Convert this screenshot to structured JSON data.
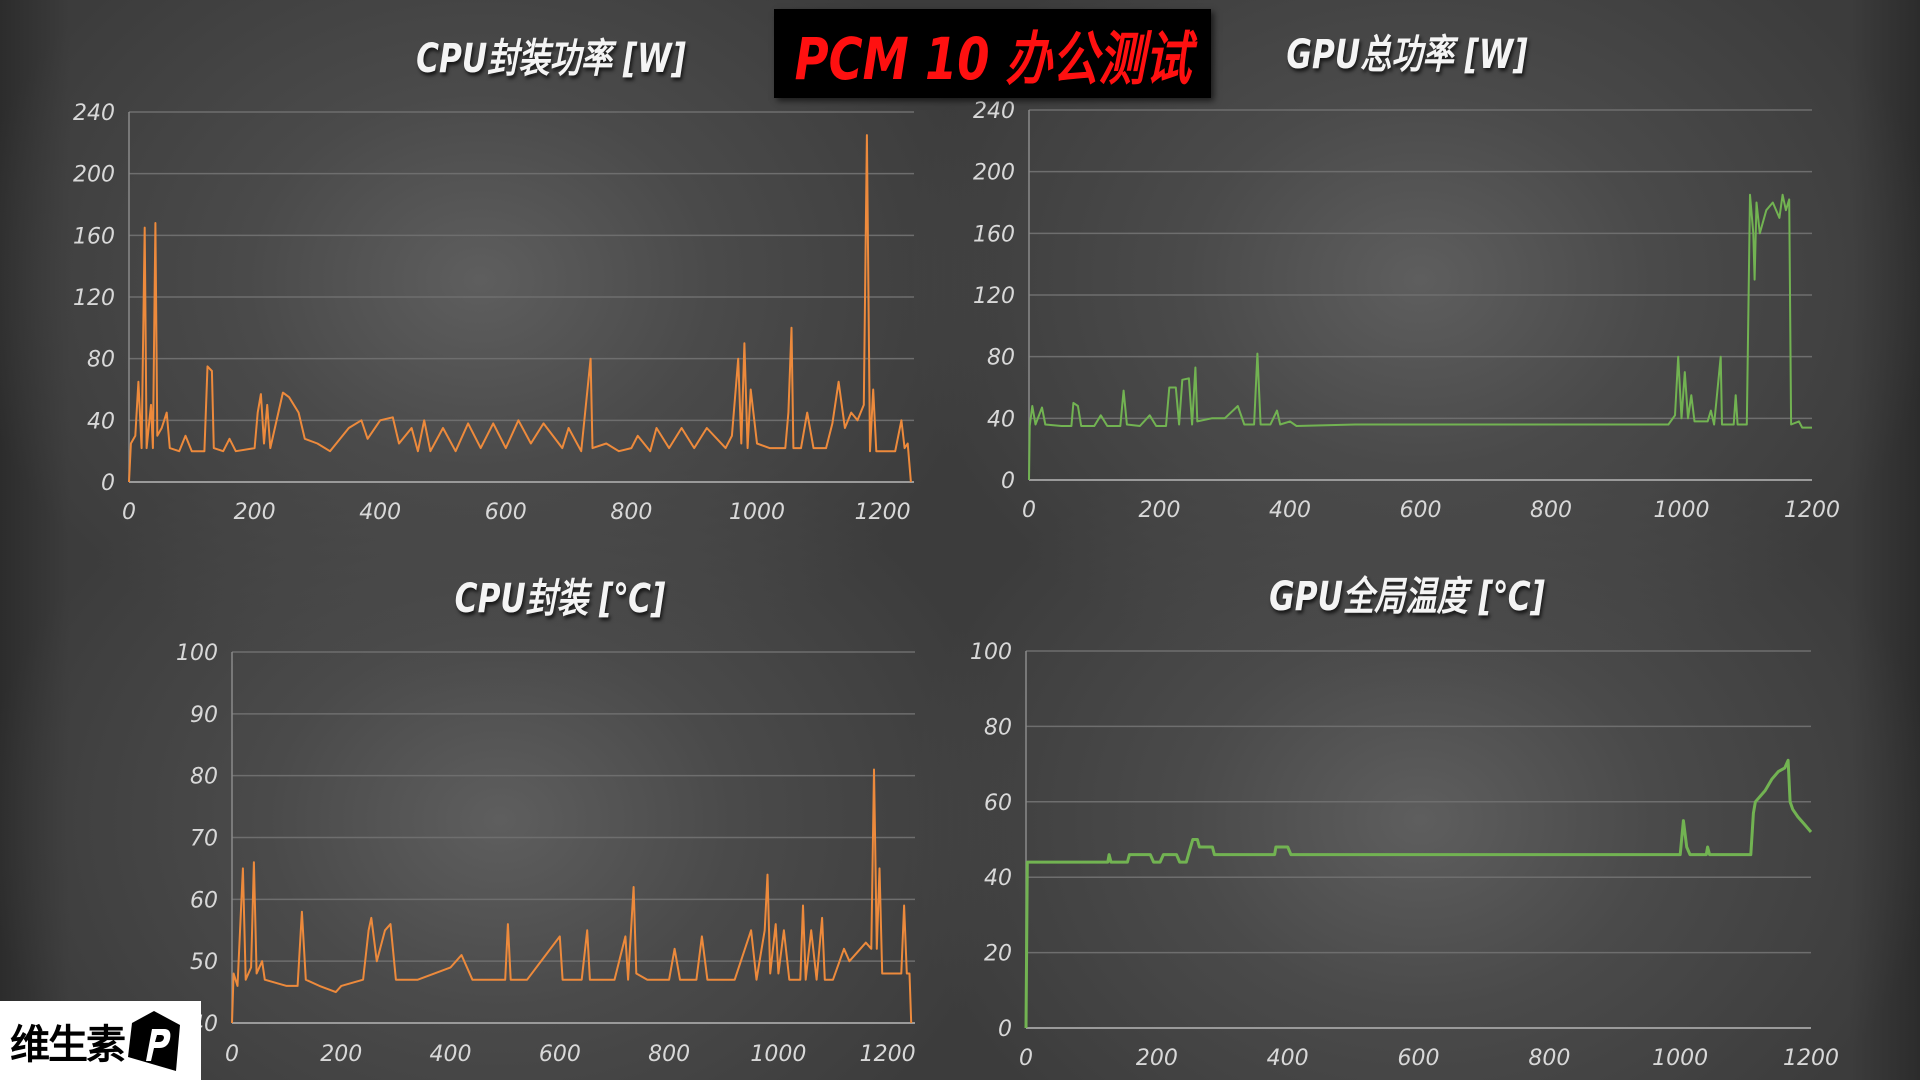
{
  "header": {
    "title": "PCM 10 办公测试",
    "title_color": "#ff1010"
  },
  "logo": {
    "text": "维生素",
    "mark": "P"
  },
  "chart_data": [
    {
      "type": "line",
      "title": "CPU封装功率 [W]",
      "color": "#ed8a3c",
      "xlim": [
        0,
        1250
      ],
      "ylim": [
        0,
        240
      ],
      "xticks": [
        0,
        200,
        400,
        600,
        800,
        1000,
        1200
      ],
      "yticks": [
        0,
        40,
        80,
        120,
        160,
        200,
        240
      ],
      "grid": true,
      "points": [
        [
          0,
          0
        ],
        [
          3,
          25
        ],
        [
          10,
          30
        ],
        [
          15,
          65
        ],
        [
          20,
          22
        ],
        [
          25,
          165
        ],
        [
          28,
          22
        ],
        [
          35,
          50
        ],
        [
          38,
          22
        ],
        [
          42,
          168
        ],
        [
          45,
          30
        ],
        [
          52,
          35
        ],
        [
          60,
          45
        ],
        [
          65,
          22
        ],
        [
          80,
          20
        ],
        [
          90,
          30
        ],
        [
          100,
          20
        ],
        [
          120,
          20
        ],
        [
          125,
          75
        ],
        [
          132,
          72
        ],
        [
          135,
          22
        ],
        [
          150,
          20
        ],
        [
          160,
          28
        ],
        [
          170,
          20
        ],
        [
          200,
          22
        ],
        [
          205,
          45
        ],
        [
          210,
          57
        ],
        [
          215,
          25
        ],
        [
          220,
          50
        ],
        [
          225,
          22
        ],
        [
          245,
          58
        ],
        [
          255,
          55
        ],
        [
          270,
          45
        ],
        [
          280,
          28
        ],
        [
          300,
          25
        ],
        [
          320,
          20
        ],
        [
          350,
          35
        ],
        [
          370,
          40
        ],
        [
          380,
          28
        ],
        [
          400,
          40
        ],
        [
          420,
          42
        ],
        [
          430,
          25
        ],
        [
          450,
          35
        ],
        [
          460,
          20
        ],
        [
          470,
          40
        ],
        [
          480,
          20
        ],
        [
          500,
          35
        ],
        [
          520,
          20
        ],
        [
          540,
          38
        ],
        [
          560,
          22
        ],
        [
          580,
          38
        ],
        [
          600,
          22
        ],
        [
          620,
          40
        ],
        [
          640,
          25
        ],
        [
          660,
          38
        ],
        [
          690,
          22
        ],
        [
          700,
          35
        ],
        [
          720,
          20
        ],
        [
          735,
          80
        ],
        [
          738,
          22
        ],
        [
          760,
          25
        ],
        [
          780,
          20
        ],
        [
          800,
          22
        ],
        [
          810,
          30
        ],
        [
          830,
          20
        ],
        [
          840,
          35
        ],
        [
          860,
          22
        ],
        [
          880,
          35
        ],
        [
          900,
          22
        ],
        [
          920,
          35
        ],
        [
          950,
          22
        ],
        [
          960,
          30
        ],
        [
          970,
          80
        ],
        [
          975,
          25
        ],
        [
          980,
          90
        ],
        [
          985,
          22
        ],
        [
          990,
          60
        ],
        [
          1000,
          25
        ],
        [
          1020,
          22
        ],
        [
          1045,
          22
        ],
        [
          1050,
          45
        ],
        [
          1055,
          100
        ],
        [
          1058,
          22
        ],
        [
          1070,
          22
        ],
        [
          1080,
          45
        ],
        [
          1090,
          22
        ],
        [
          1110,
          22
        ],
        [
          1120,
          38
        ],
        [
          1130,
          65
        ],
        [
          1140,
          35
        ],
        [
          1150,
          45
        ],
        [
          1160,
          40
        ],
        [
          1170,
          50
        ],
        [
          1175,
          225
        ],
        [
          1180,
          20
        ],
        [
          1185,
          60
        ],
        [
          1190,
          20
        ],
        [
          1220,
          20
        ],
        [
          1230,
          40
        ],
        [
          1235,
          22
        ],
        [
          1240,
          25
        ],
        [
          1245,
          0
        ]
      ]
    },
    {
      "type": "line",
      "title": "GPU总功率 [W]",
      "color": "#72b352",
      "xlim": [
        0,
        1200
      ],
      "ylim": [
        0,
        240
      ],
      "xticks": [
        0,
        200,
        400,
        600,
        800,
        1000,
        1200
      ],
      "yticks": [
        0,
        40,
        80,
        120,
        160,
        200,
        240
      ],
      "grid": true,
      "points": [
        [
          0,
          0
        ],
        [
          1,
          35
        ],
        [
          5,
          48
        ],
        [
          10,
          36
        ],
        [
          20,
          47
        ],
        [
          25,
          36
        ],
        [
          50,
          35
        ],
        [
          65,
          35
        ],
        [
          68,
          50
        ],
        [
          75,
          48
        ],
        [
          80,
          35
        ],
        [
          100,
          35
        ],
        [
          110,
          42
        ],
        [
          120,
          35
        ],
        [
          140,
          35
        ],
        [
          145,
          58
        ],
        [
          150,
          36
        ],
        [
          170,
          35
        ],
        [
          185,
          42
        ],
        [
          195,
          35
        ],
        [
          210,
          35
        ],
        [
          215,
          60
        ],
        [
          225,
          60
        ],
        [
          230,
          36
        ],
        [
          235,
          65
        ],
        [
          245,
          66
        ],
        [
          250,
          36
        ],
        [
          255,
          73
        ],
        [
          258,
          38
        ],
        [
          280,
          40
        ],
        [
          300,
          40
        ],
        [
          320,
          48
        ],
        [
          330,
          36
        ],
        [
          345,
          36
        ],
        [
          350,
          82
        ],
        [
          355,
          36
        ],
        [
          370,
          36
        ],
        [
          380,
          45
        ],
        [
          385,
          36
        ],
        [
          400,
          38
        ],
        [
          410,
          35
        ],
        [
          500,
          36
        ],
        [
          600,
          36
        ],
        [
          700,
          36
        ],
        [
          800,
          36
        ],
        [
          950,
          36
        ],
        [
          980,
          36
        ],
        [
          990,
          42
        ],
        [
          995,
          80
        ],
        [
          1000,
          40
        ],
        [
          1005,
          70
        ],
        [
          1010,
          40
        ],
        [
          1015,
          55
        ],
        [
          1020,
          38
        ],
        [
          1040,
          38
        ],
        [
          1045,
          45
        ],
        [
          1050,
          36
        ],
        [
          1060,
          80
        ],
        [
          1062,
          36
        ],
        [
          1080,
          36
        ],
        [
          1083,
          55
        ],
        [
          1086,
          36
        ],
        [
          1100,
          36
        ],
        [
          1105,
          185
        ],
        [
          1110,
          160
        ],
        [
          1112,
          130
        ],
        [
          1115,
          180
        ],
        [
          1120,
          160
        ],
        [
          1130,
          175
        ],
        [
          1140,
          180
        ],
        [
          1150,
          170
        ],
        [
          1155,
          185
        ],
        [
          1160,
          175
        ],
        [
          1165,
          182
        ],
        [
          1168,
          36
        ],
        [
          1180,
          38
        ],
        [
          1185,
          34
        ],
        [
          1200,
          34
        ]
      ]
    },
    {
      "type": "line",
      "title": "CPU封装 [℃]",
      "color": "#ed8a3c",
      "xlim": [
        0,
        1250
      ],
      "ylim": [
        40,
        100
      ],
      "xticks": [
        0,
        200,
        400,
        600,
        800,
        1000,
        1200
      ],
      "yticks": [
        40,
        50,
        60,
        70,
        80,
        90,
        100
      ],
      "grid": true,
      "points": [
        [
          0,
          40
        ],
        [
          3,
          48
        ],
        [
          10,
          46
        ],
        [
          20,
          65
        ],
        [
          25,
          47
        ],
        [
          35,
          49
        ],
        [
          40,
          66
        ],
        [
          45,
          48
        ],
        [
          55,
          50
        ],
        [
          60,
          47
        ],
        [
          100,
          46
        ],
        [
          120,
          46
        ],
        [
          128,
          58
        ],
        [
          135,
          47
        ],
        [
          160,
          46
        ],
        [
          190,
          45
        ],
        [
          200,
          46
        ],
        [
          240,
          47
        ],
        [
          250,
          55
        ],
        [
          255,
          57
        ],
        [
          265,
          50
        ],
        [
          280,
          55
        ],
        [
          290,
          56
        ],
        [
          300,
          47
        ],
        [
          340,
          47
        ],
        [
          400,
          49
        ],
        [
          420,
          51
        ],
        [
          440,
          47
        ],
        [
          500,
          47
        ],
        [
          505,
          56
        ],
        [
          510,
          47
        ],
        [
          540,
          47
        ],
        [
          600,
          54
        ],
        [
          605,
          47
        ],
        [
          640,
          47
        ],
        [
          650,
          55
        ],
        [
          655,
          47
        ],
        [
          700,
          47
        ],
        [
          720,
          54
        ],
        [
          725,
          47
        ],
        [
          735,
          62
        ],
        [
          740,
          48
        ],
        [
          760,
          47
        ],
        [
          800,
          47
        ],
        [
          810,
          52
        ],
        [
          820,
          47
        ],
        [
          850,
          47
        ],
        [
          860,
          54
        ],
        [
          870,
          47
        ],
        [
          920,
          47
        ],
        [
          950,
          55
        ],
        [
          960,
          47
        ],
        [
          975,
          55
        ],
        [
          980,
          64
        ],
        [
          985,
          48
        ],
        [
          995,
          56
        ],
        [
          1000,
          48
        ],
        [
          1010,
          55
        ],
        [
          1020,
          47
        ],
        [
          1040,
          47
        ],
        [
          1045,
          59
        ],
        [
          1050,
          47
        ],
        [
          1060,
          55
        ],
        [
          1070,
          47
        ],
        [
          1080,
          57
        ],
        [
          1085,
          47
        ],
        [
          1100,
          47
        ],
        [
          1120,
          52
        ],
        [
          1130,
          50
        ],
        [
          1150,
          52
        ],
        [
          1160,
          53
        ],
        [
          1170,
          52
        ],
        [
          1175,
          81
        ],
        [
          1180,
          52
        ],
        [
          1185,
          65
        ],
        [
          1190,
          48
        ],
        [
          1225,
          48
        ],
        [
          1230,
          59
        ],
        [
          1235,
          48
        ],
        [
          1240,
          48
        ],
        [
          1243,
          40
        ]
      ]
    },
    {
      "type": "line",
      "title": "GPU全局温度 [℃]",
      "color": "#72b352",
      "xlim": [
        0,
        1200
      ],
      "ylim": [
        0,
        100
      ],
      "xticks": [
        0,
        200,
        400,
        600,
        800,
        1000,
        1200
      ],
      "yticks": [
        0,
        20,
        40,
        60,
        80,
        100
      ],
      "grid": true,
      "points": [
        [
          0,
          0
        ],
        [
          2,
          44
        ],
        [
          125,
          44
        ],
        [
          127,
          46
        ],
        [
          130,
          44
        ],
        [
          155,
          44
        ],
        [
          158,
          46
        ],
        [
          190,
          46
        ],
        [
          195,
          44
        ],
        [
          205,
          44
        ],
        [
          210,
          46
        ],
        [
          230,
          46
        ],
        [
          235,
          44
        ],
        [
          245,
          44
        ],
        [
          250,
          47
        ],
        [
          255,
          50
        ],
        [
          262,
          50
        ],
        [
          265,
          48
        ],
        [
          285,
          48
        ],
        [
          288,
          46
        ],
        [
          380,
          46
        ],
        [
          382,
          48
        ],
        [
          400,
          48
        ],
        [
          405,
          46
        ],
        [
          1000,
          46
        ],
        [
          1005,
          55
        ],
        [
          1010,
          48
        ],
        [
          1015,
          46
        ],
        [
          1040,
          46
        ],
        [
          1042,
          48
        ],
        [
          1045,
          46
        ],
        [
          1108,
          46
        ],
        [
          1112,
          57
        ],
        [
          1115,
          60
        ],
        [
          1130,
          63
        ],
        [
          1140,
          66
        ],
        [
          1150,
          68
        ],
        [
          1160,
          69
        ],
        [
          1165,
          71
        ],
        [
          1168,
          60
        ],
        [
          1172,
          58
        ],
        [
          1180,
          56
        ],
        [
          1190,
          54
        ],
        [
          1200,
          52
        ]
      ]
    }
  ]
}
